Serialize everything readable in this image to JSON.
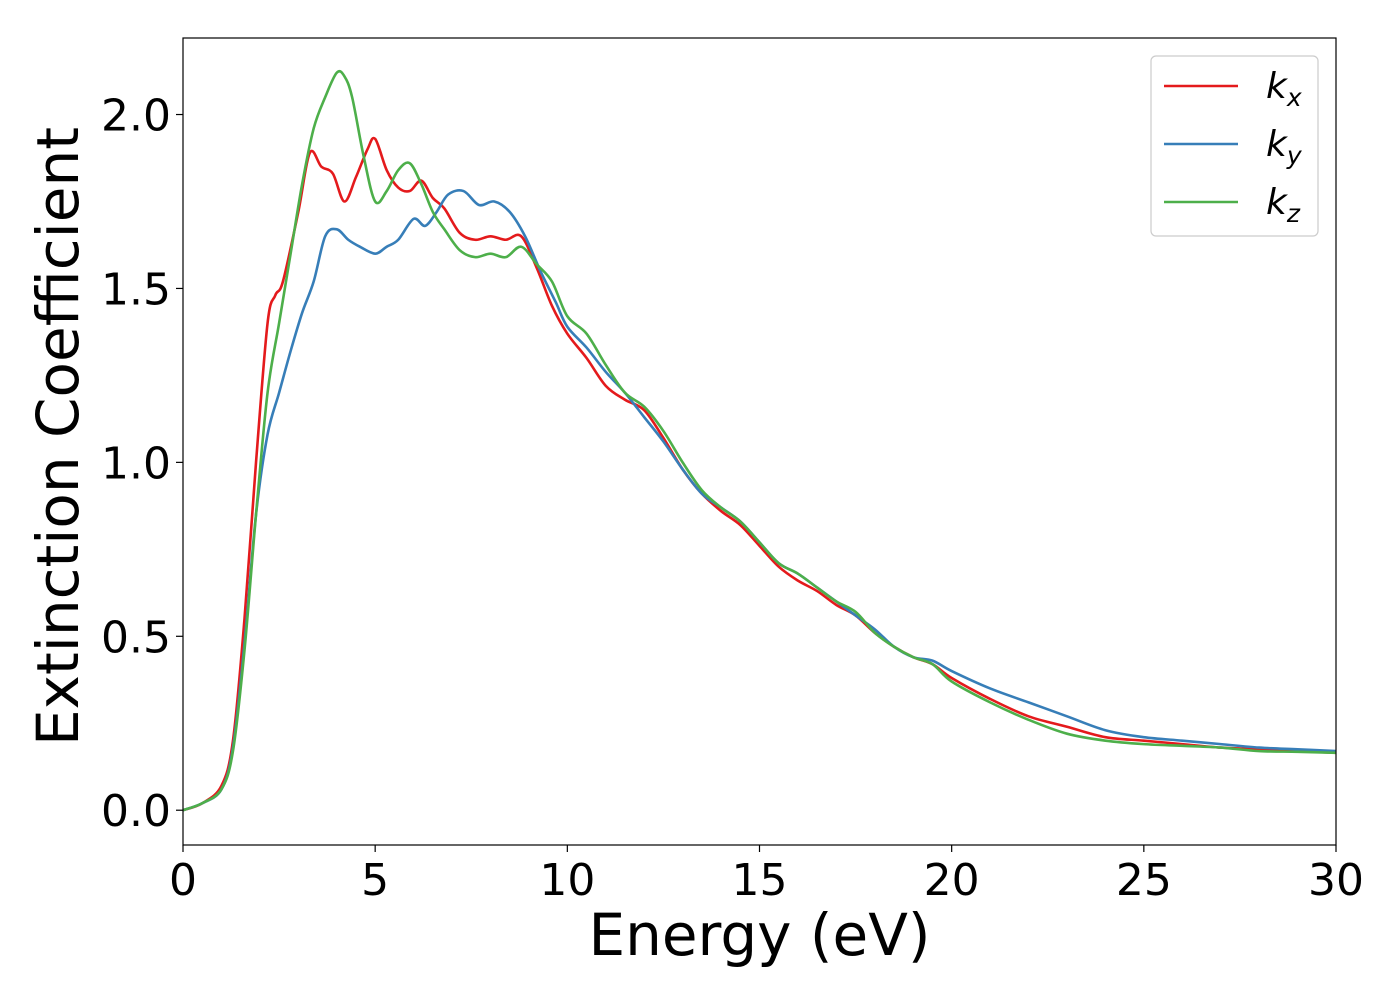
{
  "chart_data": {
    "type": "line",
    "xlabel": "Energy (eV)",
    "ylabel": "Extinction Coefficient",
    "xlim": [
      0,
      30
    ],
    "ylim": [
      -0.1,
      2.22
    ],
    "xticks": [
      0,
      5,
      10,
      15,
      20,
      25,
      30
    ],
    "xtick_labels": [
      "0",
      "5",
      "10",
      "15",
      "20",
      "25",
      "30"
    ],
    "yticks": [
      0.0,
      0.5,
      1.0,
      1.5,
      2.0
    ],
    "ytick_labels": [
      "0.0",
      "0.5",
      "1.0",
      "1.5",
      "2.0"
    ],
    "grid": false,
    "legend_position": "top-right",
    "series": [
      {
        "name": "kx",
        "label_base": "k",
        "label_sub": "x",
        "color": "#e41a1c",
        "x": [
          0,
          0.5,
          1.0,
          1.3,
          1.6,
          1.9,
          2.2,
          2.4,
          2.6,
          3.0,
          3.3,
          3.6,
          3.9,
          4.2,
          4.5,
          4.8,
          5.0,
          5.3,
          5.6,
          5.9,
          6.2,
          6.5,
          6.8,
          7.2,
          7.6,
          8.0,
          8.4,
          8.8,
          9.2,
          9.6,
          10.0,
          10.5,
          11.0,
          11.5,
          12.0,
          12.5,
          13.0,
          13.5,
          14.0,
          14.5,
          15.0,
          15.5,
          16.0,
          16.5,
          17.0,
          17.5,
          18.0,
          18.5,
          19.0,
          19.5,
          20.0,
          21.0,
          22.0,
          23.0,
          24.0,
          25.0,
          26.0,
          27.0,
          28.0,
          29.0,
          30.0
        ],
        "y": [
          0.0,
          0.02,
          0.07,
          0.2,
          0.55,
          1.0,
          1.4,
          1.48,
          1.52,
          1.72,
          1.89,
          1.85,
          1.83,
          1.75,
          1.82,
          1.9,
          1.93,
          1.84,
          1.79,
          1.78,
          1.81,
          1.76,
          1.73,
          1.66,
          1.64,
          1.65,
          1.64,
          1.65,
          1.56,
          1.45,
          1.37,
          1.3,
          1.22,
          1.18,
          1.15,
          1.07,
          0.98,
          0.91,
          0.86,
          0.82,
          0.76,
          0.7,
          0.66,
          0.63,
          0.59,
          0.56,
          0.51,
          0.47,
          0.44,
          0.42,
          0.38,
          0.32,
          0.27,
          0.24,
          0.21,
          0.2,
          0.19,
          0.18,
          0.175,
          0.17,
          0.165
        ]
      },
      {
        "name": "ky",
        "label_base": "k",
        "label_sub": "y",
        "color": "#377eb8",
        "x": [
          0,
          0.5,
          1.0,
          1.3,
          1.6,
          1.9,
          2.2,
          2.5,
          2.8,
          3.1,
          3.4,
          3.7,
          4.0,
          4.3,
          4.6,
          5.0,
          5.3,
          5.6,
          6.0,
          6.3,
          6.6,
          6.9,
          7.3,
          7.7,
          8.1,
          8.5,
          8.9,
          9.3,
          9.7,
          10.0,
          10.5,
          11.0,
          11.5,
          12.0,
          12.5,
          13.0,
          13.5,
          14.0,
          14.5,
          15.0,
          15.5,
          16.0,
          16.5,
          17.0,
          17.5,
          18.0,
          18.5,
          19.0,
          19.5,
          20.0,
          21.0,
          22.0,
          23.0,
          24.0,
          25.0,
          26.0,
          27.0,
          28.0,
          29.0,
          30.0
        ],
        "y": [
          0.0,
          0.02,
          0.06,
          0.18,
          0.48,
          0.85,
          1.08,
          1.2,
          1.32,
          1.43,
          1.52,
          1.65,
          1.67,
          1.64,
          1.62,
          1.6,
          1.62,
          1.64,
          1.7,
          1.68,
          1.72,
          1.77,
          1.78,
          1.74,
          1.75,
          1.72,
          1.65,
          1.55,
          1.46,
          1.39,
          1.33,
          1.26,
          1.2,
          1.13,
          1.06,
          0.98,
          0.91,
          0.87,
          0.83,
          0.77,
          0.71,
          0.68,
          0.64,
          0.6,
          0.56,
          0.52,
          0.47,
          0.44,
          0.43,
          0.4,
          0.35,
          0.31,
          0.27,
          0.23,
          0.21,
          0.2,
          0.19,
          0.18,
          0.175,
          0.17
        ]
      },
      {
        "name": "kz",
        "label_base": "k",
        "label_sub": "z",
        "color": "#4daf4a",
        "x": [
          0,
          0.5,
          1.0,
          1.3,
          1.6,
          1.9,
          2.2,
          2.5,
          2.8,
          3.1,
          3.4,
          3.7,
          4.0,
          4.2,
          4.4,
          4.7,
          5.0,
          5.3,
          5.6,
          5.9,
          6.2,
          6.5,
          6.8,
          7.2,
          7.6,
          8.0,
          8.4,
          8.8,
          9.2,
          9.6,
          10.0,
          10.5,
          11.0,
          11.5,
          12.0,
          12.5,
          13.0,
          13.5,
          14.0,
          14.5,
          15.0,
          15.5,
          16.0,
          16.5,
          17.0,
          17.5,
          18.0,
          18.5,
          19.0,
          19.5,
          20.0,
          21.0,
          22.0,
          23.0,
          24.0,
          25.0,
          26.0,
          27.0,
          28.0,
          29.0,
          30.0
        ],
        "y": [
          0.0,
          0.02,
          0.06,
          0.17,
          0.46,
          0.85,
          1.2,
          1.4,
          1.6,
          1.8,
          1.96,
          2.05,
          2.12,
          2.11,
          2.05,
          1.88,
          1.75,
          1.78,
          1.84,
          1.86,
          1.8,
          1.72,
          1.67,
          1.61,
          1.59,
          1.6,
          1.59,
          1.62,
          1.57,
          1.52,
          1.42,
          1.37,
          1.28,
          1.2,
          1.16,
          1.09,
          1.0,
          0.92,
          0.87,
          0.83,
          0.77,
          0.71,
          0.68,
          0.64,
          0.6,
          0.57,
          0.51,
          0.47,
          0.44,
          0.42,
          0.37,
          0.31,
          0.26,
          0.22,
          0.2,
          0.19,
          0.185,
          0.18,
          0.17,
          0.168,
          0.165
        ]
      }
    ]
  }
}
